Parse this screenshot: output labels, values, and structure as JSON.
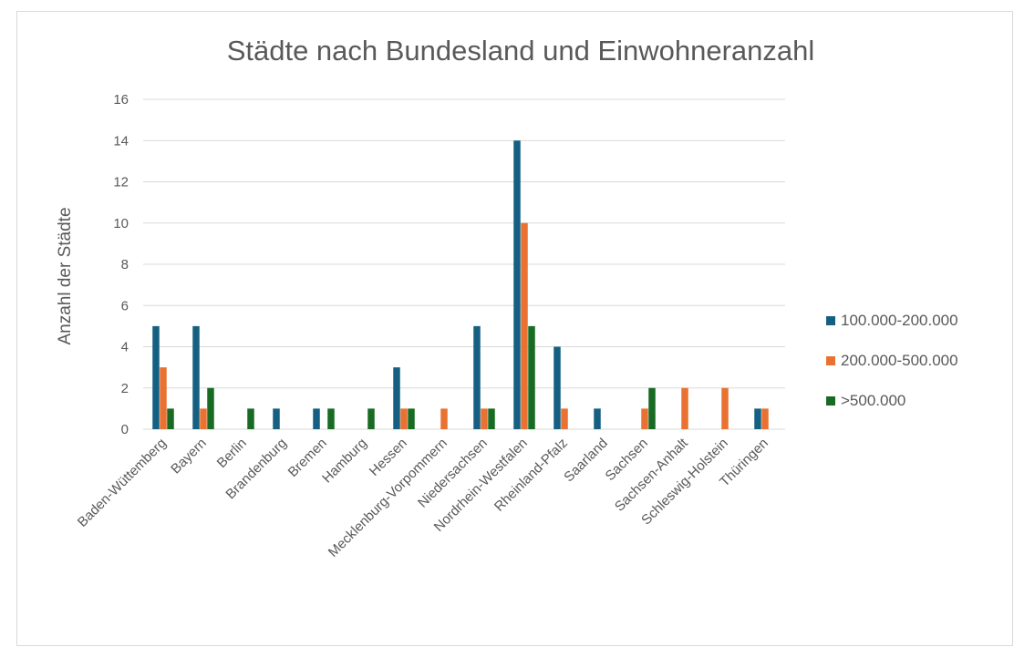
{
  "chart_data": {
    "type": "bar",
    "title": "Städte nach Bundesland und Einwohneranzahl",
    "xlabel": "",
    "ylabel": "Anzahl der Städte",
    "ylim": [
      0,
      16
    ],
    "yticks": [
      0,
      2,
      4,
      6,
      8,
      10,
      12,
      14,
      16
    ],
    "grid": true,
    "legend_position": "right",
    "categories": [
      "Baden-Wüttemberg",
      "Bayern",
      "Berlin",
      "Brandenburg",
      "Bremen",
      "Hamburg",
      "Hessen",
      "Mecklenburg-Vorpommern",
      "Niedersachsen",
      "Nordrhein-Westfalen",
      "Rheinland-Pfalz",
      "Saarland",
      "Sachsen",
      "Sachsen-Anhalt",
      "Schleswig-Holstein",
      "Thüringen"
    ],
    "series": [
      {
        "name": "100.000-200.000",
        "color": "#156082",
        "values": [
          5,
          5,
          0,
          1,
          1,
          0,
          3,
          0,
          5,
          14,
          4,
          1,
          0,
          0,
          0,
          1
        ]
      },
      {
        "name": "200.000-500.000",
        "color": "#E97132",
        "values": [
          3,
          1,
          0,
          0,
          0,
          0,
          1,
          1,
          1,
          10,
          1,
          0,
          1,
          2,
          2,
          1
        ]
      },
      {
        "name": ">500.000",
        "color": "#196B24",
        "values": [
          1,
          2,
          1,
          0,
          1,
          1,
          1,
          0,
          1,
          5,
          0,
          0,
          2,
          0,
          0,
          0
        ]
      }
    ]
  }
}
